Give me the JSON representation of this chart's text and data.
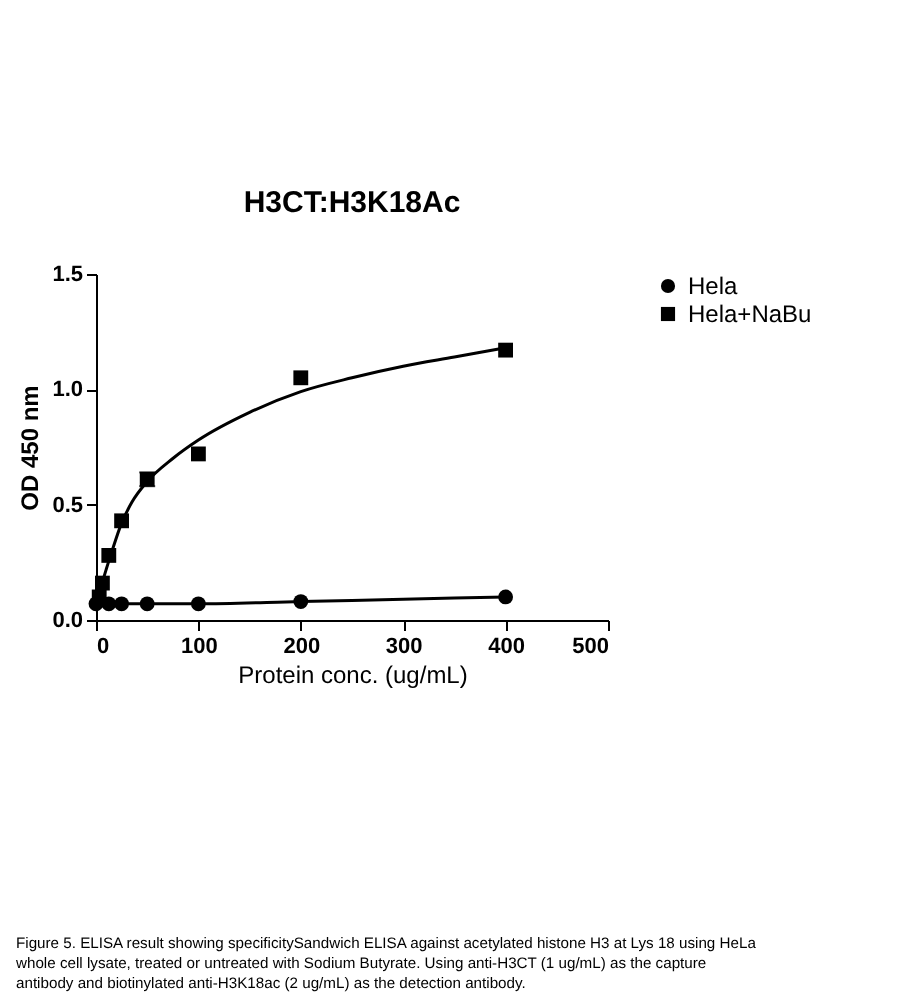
{
  "chart_data": {
    "type": "scatter",
    "title": "H3CT:H3K18Ac",
    "xlabel": "Protein conc. (ug/mL)",
    "ylabel": "OD 450 nm",
    "xlim": [
      0,
      500
    ],
    "xticks": [
      0,
      100,
      200,
      300,
      400,
      500
    ],
    "ylim": [
      0,
      1.5
    ],
    "yticks": [
      {
        "value": 0,
        "label": "0.0"
      },
      {
        "value": 0.5,
        "label": "0.5"
      },
      {
        "value": 1.0,
        "label": "1.0"
      },
      {
        "value": 1.5,
        "label": "1.5"
      }
    ],
    "grid": false,
    "legend": "right",
    "series": [
      {
        "name": "Hela",
        "marker": "circle",
        "color": "#000000",
        "x": [
          0,
          12.5,
          25,
          50,
          100,
          200,
          400
        ],
        "values": [
          0.07,
          0.07,
          0.07,
          0.07,
          0.07,
          0.08,
          0.1
        ]
      },
      {
        "name": "Hela+NaBu",
        "marker": "square",
        "color": "#000000",
        "x": [
          3.125,
          6.25,
          12.5,
          25,
          50,
          100,
          200,
          400
        ],
        "values": [
          0.1,
          0.16,
          0.28,
          0.43,
          0.61,
          0.72,
          1.05,
          1.17
        ],
        "errors": [
          null,
          null,
          null,
          null,
          0.03,
          null,
          null,
          null
        ]
      },
      {
        "type": "line",
        "color": "#000000",
        "line_style": "solid",
        "x": [
          0,
          100,
          200,
          300,
          400
        ],
        "values": [
          0.07,
          0.07,
          0.08,
          0.09,
          0.1
        ]
      },
      {
        "type": "line",
        "color": "#000000",
        "line_style": "solid",
        "x": [
          0,
          3,
          6,
          10,
          15,
          25,
          35,
          50,
          75,
          100,
          150,
          200,
          250,
          300,
          350,
          400
        ],
        "values": [
          0.07,
          0.11,
          0.16,
          0.22,
          0.29,
          0.42,
          0.51,
          0.6,
          0.7,
          0.78,
          0.9,
          0.99,
          1.05,
          1.1,
          1.14,
          1.18
        ]
      }
    ],
    "annotations": [
      "Figure 5. ELISA result showing specificitySandwich ELISA against acetylated histone H3 at Lys 18 using HeLa whole cell lysate, treated or untreated with Sodium Butyrate. Using anti-H3CT (1 ug/mL) as the capture antibody and biotinylated anti-H3K18ac (2 ug/mL) as the detection antibody."
    ]
  }
}
